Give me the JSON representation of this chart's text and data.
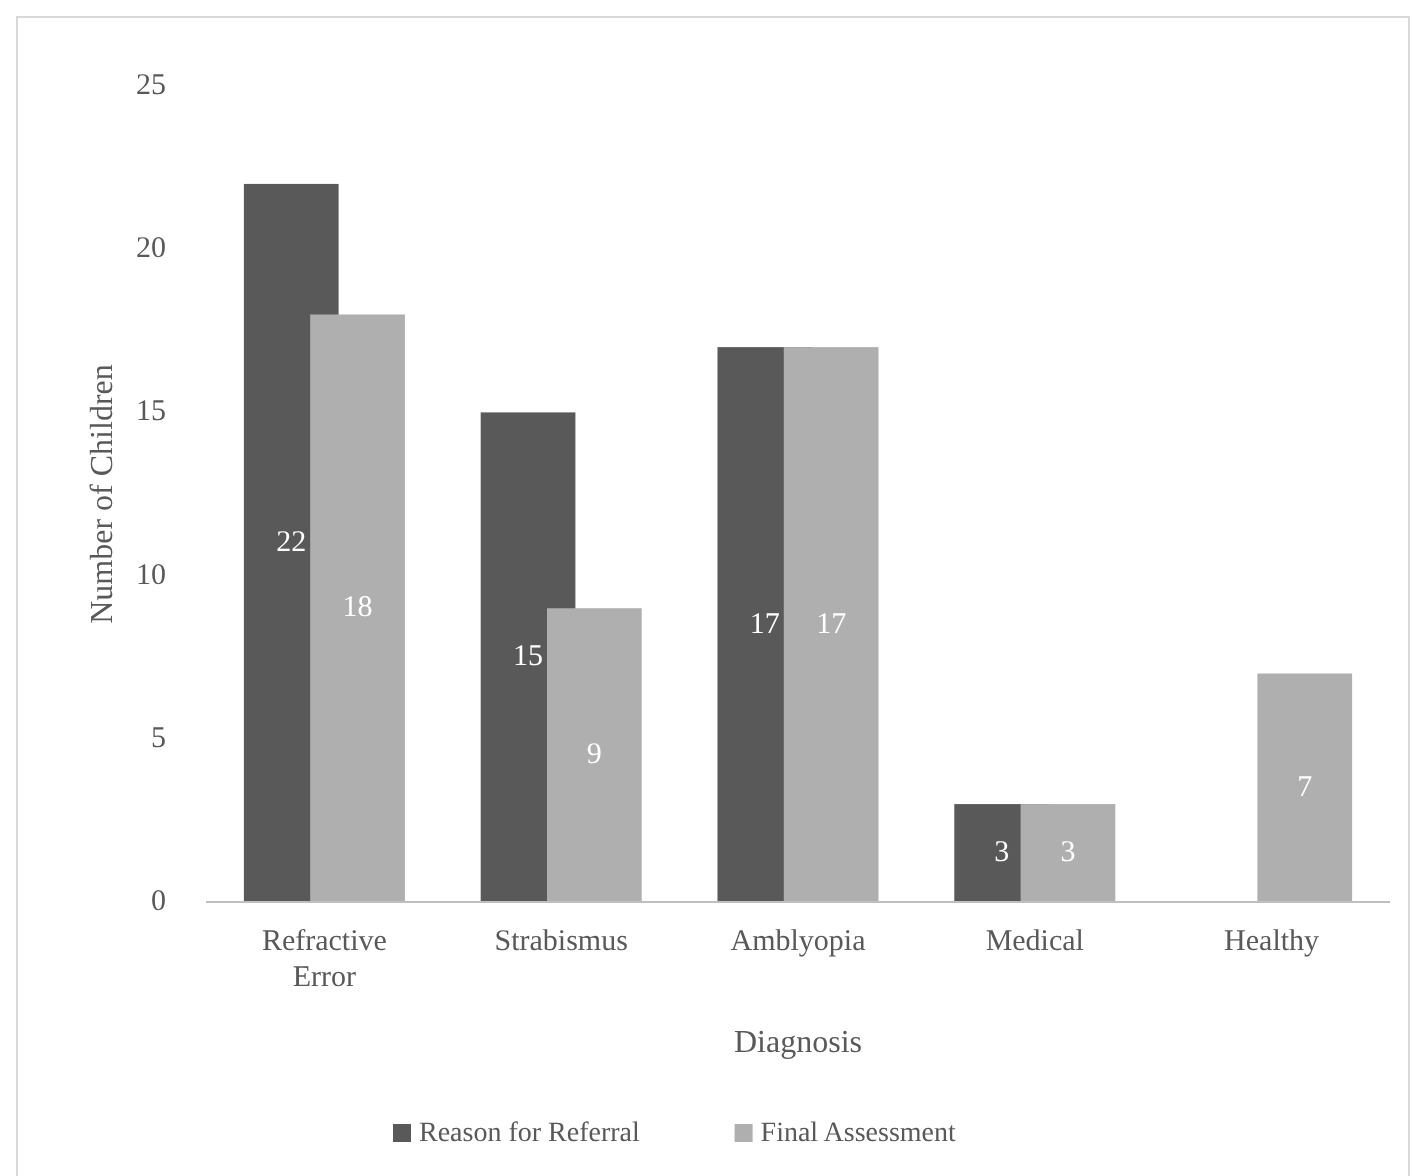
{
  "chart_data": {
    "type": "bar",
    "xlabel": "Diagnosis",
    "ylabel": "Number of Children",
    "categories": [
      "Refractive Error",
      "Strabismus",
      "Amblyopia",
      "Medical",
      "Healthy"
    ],
    "series": [
      {
        "name": "Reason for Referral",
        "color": "#595959",
        "values": [
          22,
          15,
          17,
          3,
          0
        ],
        "value_labels": [
          "22",
          "15",
          "17",
          "3",
          null
        ]
      },
      {
        "name": "Final Assessment",
        "color": "#afafaf",
        "values": [
          18,
          9,
          17,
          3,
          7
        ],
        "value_labels": [
          "18",
          "9",
          "17",
          "3",
          "7"
        ]
      }
    ],
    "ylim": [
      0,
      25
    ],
    "yticks": [
      0,
      5,
      10,
      15,
      20,
      25
    ],
    "grid": false,
    "legend": "bottom"
  }
}
